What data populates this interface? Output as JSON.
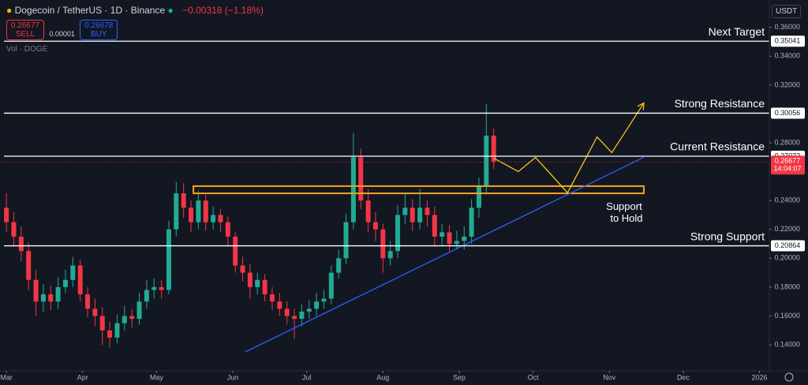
{
  "header": {
    "symbol": "Dogecoin / TetherUS · 1D · Binance",
    "change": "−0.00318 (−1.18%)",
    "sell_price": "0.26677",
    "sell": "SELL",
    "spread": "0.00001",
    "buy_price": "0.26678",
    "buy": "BUY",
    "volume": "Vol · DOGE",
    "currency": "USDT"
  },
  "chart_data": {
    "type": "candlestick",
    "up_color": "#22ab94",
    "down_color": "#f23645",
    "x": [
      0,
      3,
      6,
      9,
      12,
      15,
      18,
      21,
      24,
      27,
      30,
      33,
      36,
      39,
      42,
      45,
      48,
      51,
      54,
      57,
      60,
      63,
      66,
      69,
      72,
      75,
      78,
      81,
      84,
      87,
      90,
      93,
      96,
      99,
      102,
      105,
      108,
      111,
      114,
      117,
      120,
      123,
      126,
      129,
      132,
      135,
      138,
      141,
      144,
      147,
      150,
      153,
      156,
      159,
      162,
      165,
      168,
      171,
      174,
      177,
      180,
      183,
      186,
      189,
      192,
      195,
      198
    ],
    "open": [
      0.235,
      0.225,
      0.215,
      0.205,
      0.185,
      0.17,
      0.175,
      0.17,
      0.18,
      0.185,
      0.195,
      0.175,
      0.165,
      0.16,
      0.15,
      0.145,
      0.155,
      0.16,
      0.158,
      0.17,
      0.178,
      0.18,
      0.178,
      0.22,
      0.245,
      0.235,
      0.225,
      0.24,
      0.225,
      0.23,
      0.225,
      0.215,
      0.195,
      0.19,
      0.18,
      0.185,
      0.175,
      0.17,
      0.165,
      0.16,
      0.158,
      0.163,
      0.165,
      0.17,
      0.172,
      0.19,
      0.2,
      0.225,
      0.27,
      0.24,
      0.225,
      0.22,
      0.2,
      0.205,
      0.23,
      0.235,
      0.225,
      0.235,
      0.23,
      0.215,
      0.218,
      0.21,
      0.212,
      0.215,
      0.235,
      0.25,
      0.285
    ],
    "high": [
      0.245,
      0.232,
      0.222,
      0.211,
      0.192,
      0.182,
      0.181,
      0.187,
      0.192,
      0.201,
      0.199,
      0.18,
      0.172,
      0.166,
      0.156,
      0.161,
      0.167,
      0.165,
      0.176,
      0.185,
      0.186,
      0.185,
      0.226,
      0.253,
      0.252,
      0.24,
      0.247,
      0.244,
      0.236,
      0.234,
      0.229,
      0.218,
      0.201,
      0.196,
      0.19,
      0.189,
      0.18,
      0.176,
      0.17,
      0.165,
      0.168,
      0.171,
      0.176,
      0.178,
      0.195,
      0.206,
      0.231,
      0.287,
      0.276,
      0.248,
      0.232,
      0.224,
      0.212,
      0.237,
      0.245,
      0.241,
      0.248,
      0.24,
      0.236,
      0.224,
      0.223,
      0.219,
      0.222,
      0.241,
      0.256,
      0.307,
      0.29
    ],
    "low": [
      0.218,
      0.208,
      0.198,
      0.178,
      0.16,
      0.163,
      0.164,
      0.165,
      0.176,
      0.18,
      0.17,
      0.159,
      0.153,
      0.14,
      0.138,
      0.141,
      0.15,
      0.152,
      0.154,
      0.165,
      0.172,
      0.172,
      0.175,
      0.215,
      0.228,
      0.218,
      0.22,
      0.219,
      0.22,
      0.218,
      0.208,
      0.19,
      0.184,
      0.172,
      0.175,
      0.17,
      0.164,
      0.16,
      0.154,
      0.144,
      0.153,
      0.158,
      0.16,
      0.165,
      0.168,
      0.186,
      0.196,
      0.22,
      0.234,
      0.218,
      0.212,
      0.19,
      0.195,
      0.2,
      0.224,
      0.219,
      0.22,
      0.222,
      0.208,
      0.209,
      0.205,
      0.206,
      0.206,
      0.21,
      0.228,
      0.245,
      0.262
    ],
    "close": [
      0.225,
      0.215,
      0.205,
      0.185,
      0.17,
      0.175,
      0.17,
      0.18,
      0.185,
      0.195,
      0.175,
      0.165,
      0.16,
      0.15,
      0.145,
      0.155,
      0.16,
      0.158,
      0.17,
      0.178,
      0.18,
      0.178,
      0.22,
      0.245,
      0.235,
      0.225,
      0.24,
      0.225,
      0.23,
      0.225,
      0.215,
      0.195,
      0.19,
      0.18,
      0.185,
      0.175,
      0.17,
      0.165,
      0.16,
      0.158,
      0.163,
      0.165,
      0.17,
      0.172,
      0.19,
      0.2,
      0.225,
      0.27,
      0.24,
      0.225,
      0.22,
      0.2,
      0.205,
      0.23,
      0.235,
      0.225,
      0.235,
      0.23,
      0.215,
      0.218,
      0.21,
      0.212,
      0.215,
      0.235,
      0.25,
      0.285,
      0.267
    ],
    "xlim": [
      -2.6,
      310
    ],
    "ylim": [
      0.122,
      0.379
    ],
    "xticks": [
      {
        "value": 0,
        "label": "Mar"
      },
      {
        "value": 31,
        "label": "Apr"
      },
      {
        "value": 61,
        "label": "May"
      },
      {
        "value": 92,
        "label": "Jun"
      },
      {
        "value": 122,
        "label": "Jul"
      },
      {
        "value": 153,
        "label": "Aug"
      },
      {
        "value": 184,
        "label": "Sep"
      },
      {
        "value": 214,
        "label": "Oct"
      },
      {
        "value": 245,
        "label": "Nov"
      },
      {
        "value": 275,
        "label": "Dec"
      },
      {
        "value": 306,
        "label": "2026"
      }
    ],
    "yticks": [
      {
        "value": 0.36,
        "label": "0.36000"
      },
      {
        "value": 0.34,
        "label": "0.34000"
      },
      {
        "value": 0.32,
        "label": "0.32000"
      },
      {
        "value": 0.28,
        "label": "0.28000"
      },
      {
        "value": 0.24,
        "label": "0.24000"
      },
      {
        "value": 0.22,
        "label": "0.22000"
      },
      {
        "value": 0.2,
        "label": "0.20000"
      },
      {
        "value": 0.18,
        "label": "0.18000"
      },
      {
        "value": 0.16,
        "label": "0.16000"
      },
      {
        "value": 0.14,
        "label": "0.14000"
      }
    ],
    "levels": [
      {
        "name": "Next Target",
        "value": 0.35041
      },
      {
        "name": "Strong Resistance",
        "value": 0.30056
      },
      {
        "name": "Current Resistance",
        "value": 0.27072
      },
      {
        "name": "Strong Support",
        "value": 0.20864
      }
    ],
    "current_price": {
      "value": 0.26677,
      "timer": "14:04:07"
    },
    "zone": {
      "label": "Support to Hold",
      "x": [
        76,
        259
      ],
      "y": [
        0.245,
        0.25
      ],
      "color": "#f7a21b"
    },
    "trendline": {
      "x": [
        97,
        259
      ],
      "y": [
        0.135,
        0.27
      ],
      "color": "#2962ff"
    },
    "projection": {
      "x": [
        198,
        208,
        215,
        228,
        240,
        246,
        259
      ],
      "y": [
        0.2694,
        0.2601,
        0.2699,
        0.2454,
        0.2841,
        0.2732,
        0.3076
      ],
      "color": "#f5c518"
    }
  }
}
